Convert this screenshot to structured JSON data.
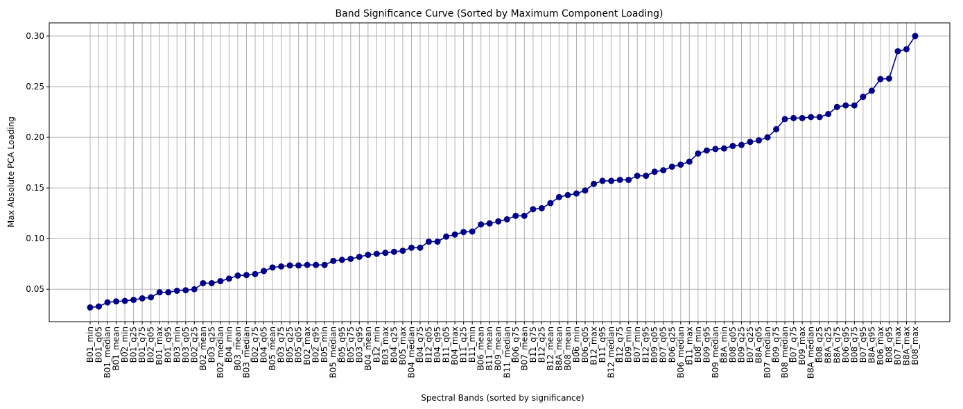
{
  "chart_data": {
    "type": "line",
    "title": "Band Significance Curve (Sorted by Maximum Component Loading)",
    "xlabel": "Spectral Bands (sorted by significance)",
    "ylabel": "Max Absolute PCA Loading",
    "ylim": [
      0.018,
      0.313
    ],
    "yticks": [
      0.05,
      0.1,
      0.15,
      0.2,
      0.25,
      0.3
    ],
    "ytick_labels": [
      "0.05",
      "0.10",
      "0.15",
      "0.20",
      "0.25",
      "0.30"
    ],
    "grid": true,
    "line_color": "#00008b",
    "marker": "circle",
    "categories": [
      "B01_min",
      "B01_q05",
      "B01_median",
      "B01_mean",
      "B02_min",
      "B01_q25",
      "B01_q75",
      "B02_q05",
      "B01_max",
      "B01_q95",
      "B03_min",
      "B03_q05",
      "B02_q25",
      "B02_mean",
      "B03_q25",
      "B02_median",
      "B04_min",
      "B03_mean",
      "B03_median",
      "B02_q75",
      "B04_q05",
      "B05_mean",
      "B03_q75",
      "B05_q25",
      "B05_q05",
      "B02_max",
      "B02_q95",
      "B05_min",
      "B05_median",
      "B05_q95",
      "B05_q75",
      "B03_q95",
      "B04_mean",
      "B12_min",
      "B03_max",
      "B04_q25",
      "B05_max",
      "B04_median",
      "B04_q75",
      "B12_q05",
      "B04_q95",
      "B11_q05",
      "B04_max",
      "B11_q25",
      "B11_min",
      "B06_mean",
      "B11_mean",
      "B09_mean",
      "B11_median",
      "B06_q75",
      "B07_mean",
      "B11_q75",
      "B12_q25",
      "B12_mean",
      "B8A_mean",
      "B08_mean",
      "B06_min",
      "B06_q05",
      "B12_max",
      "B11_q95",
      "B12_median",
      "B12_q75",
      "B09_min",
      "B07_min",
      "B12_q95",
      "B09_q05",
      "B07_q05",
      "B06_q25",
      "B06_median",
      "B11_max",
      "B08_min",
      "B09_q95",
      "B09_median",
      "B8A_min",
      "B08_q05",
      "B09_q25",
      "B07_q25",
      "B8A_q05",
      "B07_median",
      "B09_q75",
      "B08_median",
      "B07_q75",
      "B09_max",
      "B8A_median",
      "B08_q25",
      "B8A_q25",
      "B8A_q75",
      "B06_q95",
      "B08_q75",
      "B07_q95",
      "B8A_q95",
      "B06_max",
      "B08_q95",
      "B07_max",
      "B8A_max",
      "B08_max"
    ],
    "values": [
      0.032,
      0.033,
      0.037,
      0.038,
      0.0385,
      0.0395,
      0.041,
      0.042,
      0.047,
      0.047,
      0.0485,
      0.049,
      0.05,
      0.056,
      0.056,
      0.058,
      0.0605,
      0.0635,
      0.064,
      0.065,
      0.068,
      0.0715,
      0.0725,
      0.0735,
      0.0735,
      0.074,
      0.074,
      0.074,
      0.078,
      0.079,
      0.08,
      0.082,
      0.084,
      0.085,
      0.086,
      0.087,
      0.088,
      0.091,
      0.091,
      0.097,
      0.097,
      0.102,
      0.104,
      0.1065,
      0.107,
      0.114,
      0.115,
      0.117,
      0.119,
      0.1225,
      0.1225,
      0.129,
      0.13,
      0.135,
      0.141,
      0.143,
      0.1445,
      0.1475,
      0.154,
      0.157,
      0.157,
      0.158,
      0.158,
      0.162,
      0.162,
      0.166,
      0.1675,
      0.171,
      0.173,
      0.176,
      0.184,
      0.187,
      0.1885,
      0.189,
      0.1915,
      0.1925,
      0.1955,
      0.197,
      0.2,
      0.208,
      0.218,
      0.219,
      0.219,
      0.22,
      0.22,
      0.223,
      0.23,
      0.2315,
      0.2315,
      0.24,
      0.246,
      0.2575,
      0.258,
      0.285,
      0.287,
      0.3
    ]
  }
}
